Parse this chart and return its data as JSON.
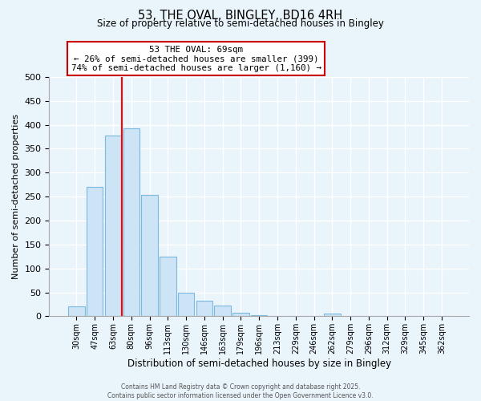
{
  "title": "53, THE OVAL, BINGLEY, BD16 4RH",
  "subtitle": "Size of property relative to semi-detached houses in Bingley",
  "xlabel": "Distribution of semi-detached houses by size in Bingley",
  "ylabel": "Number of semi-detached properties",
  "bar_labels": [
    "30sqm",
    "47sqm",
    "63sqm",
    "80sqm",
    "96sqm",
    "113sqm",
    "130sqm",
    "146sqm",
    "163sqm",
    "179sqm",
    "196sqm",
    "213sqm",
    "229sqm",
    "246sqm",
    "262sqm",
    "279sqm",
    "296sqm",
    "312sqm",
    "329sqm",
    "345sqm",
    "362sqm"
  ],
  "bar_values": [
    20,
    270,
    377,
    393,
    253,
    125,
    50,
    33,
    22,
    8,
    2,
    0,
    0,
    0,
    5,
    0,
    0,
    0,
    0,
    0,
    0
  ],
  "bar_color": "#cce4f5",
  "bar_edge_color": "#7cb9e0",
  "vline_color": "red",
  "vline_x_idx": 2,
  "annotation_title": "53 THE OVAL: 69sqm",
  "annotation_line1": "← 26% of semi-detached houses are smaller (399)",
  "annotation_line2": "74% of semi-detached houses are larger (1,160) →",
  "annotation_box_color": "white",
  "annotation_box_edge": "#cc0000",
  "ylim": [
    0,
    500
  ],
  "yticks": [
    0,
    50,
    100,
    150,
    200,
    250,
    300,
    350,
    400,
    450,
    500
  ],
  "background_color": "#eaf4fb",
  "grid_color": "white",
  "footer_line1": "Contains HM Land Registry data © Crown copyright and database right 2025.",
  "footer_line2": "Contains public sector information licensed under the Open Government Licence v3.0."
}
